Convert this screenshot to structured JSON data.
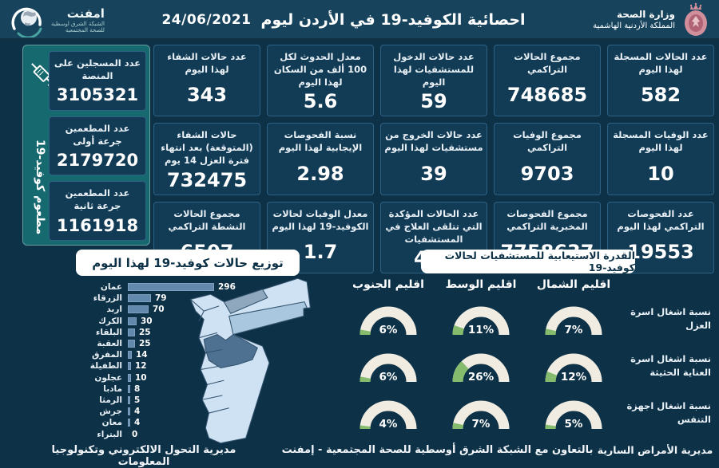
{
  "colors": {
    "background": "#0d3147",
    "header_bg": "#17435c",
    "card_bg": "#123b55",
    "card_border": "#2f6183",
    "vaccine_panel_green": "#16696e",
    "bar_fill": "#6389ad",
    "gauge_track": "#f0ece1",
    "gauge_fill": "#85bb6d",
    "map_light": "#cfe2f3",
    "map_medium": "#aac7e0",
    "map_band": "#8fa8be",
    "map_dark": "#4e7192",
    "ministry_crest": "#d18f9c"
  },
  "header": {
    "title": "احصائية الكوفيد-19 في الأردن ليوم",
    "date": "24/06/2021",
    "ministry": {
      "line1": "وزارة الصحة",
      "line2": "المملكة الأردنية الهاشمية"
    },
    "emphnet": {
      "name": "امفنت",
      "tagline_line1": "الشبكة الشرق اوسطية",
      "tagline_line2": "للصحة المجتمعية"
    }
  },
  "vaccination_panel": {
    "vertical_label": "مطعوم كوفيد-19",
    "cards": [
      {
        "label": "عدد المسجلين على المنصة",
        "value": "3105321"
      },
      {
        "label": "عدد المطعمين جرعة أولى",
        "value": "2179720"
      },
      {
        "label": "عدد المطعمين جرعة ثانية",
        "value": "1161918"
      }
    ]
  },
  "stat_cards": [
    {
      "label": "عدد الحالات المسجلة لهذا اليوم",
      "value": "582"
    },
    {
      "label": "مجموع الحالات التراكمي",
      "value": "748685"
    },
    {
      "label": "عدد حالات الدخول للمستشفيات لهذا اليوم",
      "value": "59"
    },
    {
      "label": "معدل الحدوث لكل 100 ألف من السكان لهذا اليوم",
      "value": "5.6"
    },
    {
      "label": "عدد حالات الشفاء لهذا اليوم",
      "value": "343"
    },
    {
      "label": "عدد الوفيات المسجلة لهذا اليوم",
      "value": "10"
    },
    {
      "label": "مجموع الوفيات التراكمي",
      "value": "9703"
    },
    {
      "label": "عدد حالات الخروج من مستشفيات لهذا اليوم",
      "value": "39"
    },
    {
      "label": "نسبة الفحوصات الإيجابية لهذا اليوم",
      "value": "2.98"
    },
    {
      "label": "حالات الشفاء (المتوقعة) بعد انتهاء فترة العزل 14 يوم",
      "value": "732475"
    },
    {
      "label": "عدد الفحوصات التراكمي لهذا اليوم",
      "value": "19553"
    },
    {
      "label": "مجموع الفحوصات المخبرية التراكمي",
      "value": "7758637"
    },
    {
      "label": "عدد الحالات المؤكدة التي تتلقى العلاج في المستشفيات",
      "value": "473"
    },
    {
      "label": "معدل الوفيات لحالات الكوفيد-19 لهذا اليوم",
      "value": "1.7"
    },
    {
      "label": "مجموع الحالات النشطة التراكمي",
      "value": "6507"
    }
  ],
  "chart_data": [
    {
      "type": "bar",
      "orientation": "horizontal",
      "title": "توزيع حالات كوفيد-19 لهذا اليوم",
      "categories": [
        "عمان",
        "الزرقاء",
        "اربد",
        "الكرك",
        "البلقاء",
        "العقبة",
        "المفرق",
        "الطفيلة",
        "عجلون",
        "مادبا",
        "الرمثا",
        "جرش",
        "معان",
        "البتراء"
      ],
      "values": [
        296,
        79,
        70,
        30,
        25,
        25,
        14,
        12,
        10,
        8,
        5,
        4,
        4,
        0
      ],
      "xlim": [
        0,
        300
      ],
      "grid": false,
      "value_labels": true
    },
    {
      "type": "gauge-grid",
      "title": "القدرة الاستيعابية للمستشفيات لحالات كوفيد-19",
      "columns": [
        "اقليم الشمال",
        "اقليم الوسط",
        "اقليم الجنوب"
      ],
      "rows": [
        {
          "label": "نسبة اشغال اسرة العزل",
          "values_pct": [
            7,
            11,
            6
          ]
        },
        {
          "label": "نسبة اشغال اسرة العناية الحثيثة",
          "values_pct": [
            12,
            26,
            6
          ]
        },
        {
          "label": "نسبة اشغال اجهزة التنفس",
          "values_pct": [
            5,
            7,
            4
          ]
        }
      ],
      "gauge_range_pct": [
        0,
        100
      ]
    }
  ],
  "footer": {
    "left": "مديرية التحول الالكتروني وتكنولوجيا المعلومات",
    "center": "بالتعاون مع الشبكة الشرق أوسطية للصحة المجتمعية - إمفنت",
    "right": "مديرية الأمراض السارية"
  }
}
